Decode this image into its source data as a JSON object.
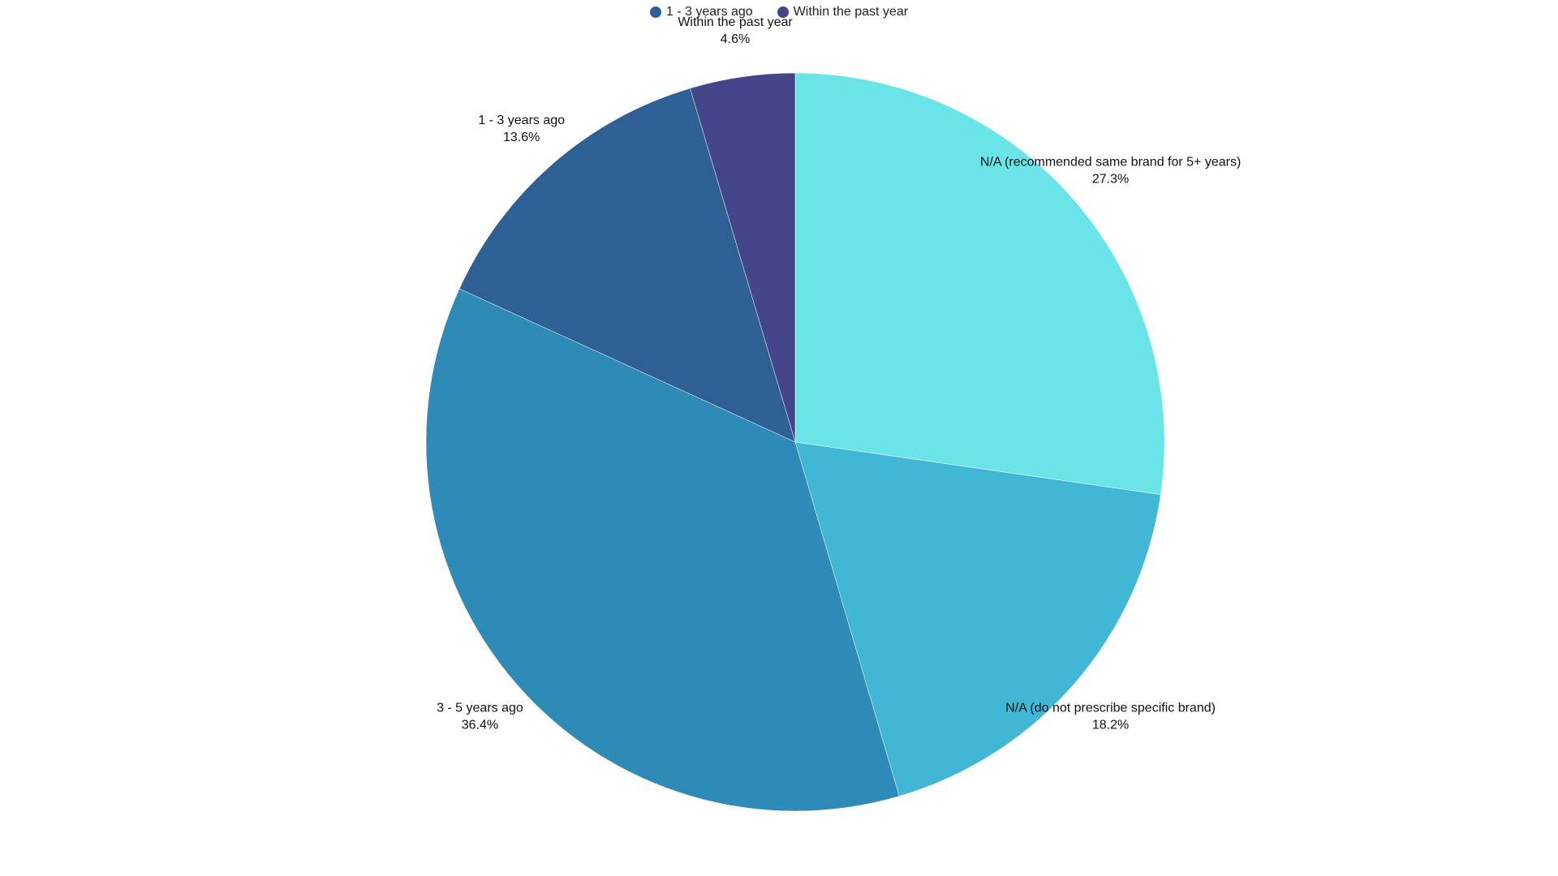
{
  "chart_data": {
    "type": "pie",
    "legend": {
      "placement": "top-center",
      "entries": [
        {
          "label": "1 - 3 years ago",
          "color": "#2e6095"
        },
        {
          "label": "Within the past year",
          "color": "#45458c"
        }
      ]
    },
    "slices": [
      {
        "label": "N/A (recommended same brand for 5+ years)",
        "value": 27.3,
        "value_label": "27.3%",
        "color": "#6be4e8"
      },
      {
        "label": "N/A (do not prescribe specific brand)",
        "value": 18.2,
        "value_label": "18.2%",
        "color": "#42b6d5"
      },
      {
        "label": "3 - 5 years ago",
        "value": 36.4,
        "value_label": "36.4%",
        "color": "#2e8bb8"
      },
      {
        "label": "1 - 3 years ago",
        "value": 13.6,
        "value_label": "13.6%",
        "color": "#2e6095"
      },
      {
        "label": "Within the past year",
        "value": 4.6,
        "value_label": "4.6%",
        "color": "#45458c"
      }
    ]
  }
}
